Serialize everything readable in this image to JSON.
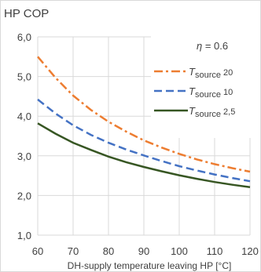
{
  "chart_data": {
    "type": "line",
    "title": "HP COP",
    "xlabel": "DH-supply temperature leaving HP  [°C]",
    "ylabel": "",
    "annotation": {
      "symbol": "η",
      "text": " = 0.6"
    },
    "xlim": [
      60,
      120
    ],
    "ylim": [
      1.0,
      6.0
    ],
    "xticks": [
      "60",
      "70",
      "80",
      "90",
      "100",
      "110",
      "120"
    ],
    "yticks": [
      "1,0",
      "2,0",
      "3,0",
      "4,0",
      "5,0",
      "6,0"
    ],
    "grid": true,
    "legend_position": "top-right",
    "x": [
      60,
      65,
      70,
      75,
      80,
      85,
      90,
      95,
      100,
      105,
      110,
      115,
      120
    ],
    "series": [
      {
        "name": "T",
        "subscript": "source",
        "suffix": " 20",
        "color": "#ed7d31",
        "dash": "dashdot",
        "values": [
          5.5,
          4.97,
          4.52,
          4.16,
          3.86,
          3.61,
          3.39,
          3.21,
          3.05,
          2.91,
          2.79,
          2.69,
          2.6
        ]
      },
      {
        "name": "T",
        "subscript": "source",
        "suffix": " 10",
        "color": "#4472c4",
        "dash": "dash",
        "values": [
          4.42,
          4.07,
          3.77,
          3.53,
          3.33,
          3.16,
          3.01,
          2.87,
          2.74,
          2.63,
          2.53,
          2.44,
          2.36
        ]
      },
      {
        "name": "T",
        "subscript": "source",
        "suffix": " 2,5",
        "color": "#375623",
        "dash": "solid",
        "values": [
          3.82,
          3.56,
          3.33,
          3.15,
          2.98,
          2.84,
          2.72,
          2.61,
          2.51,
          2.42,
          2.34,
          2.27,
          2.21
        ]
      }
    ]
  }
}
